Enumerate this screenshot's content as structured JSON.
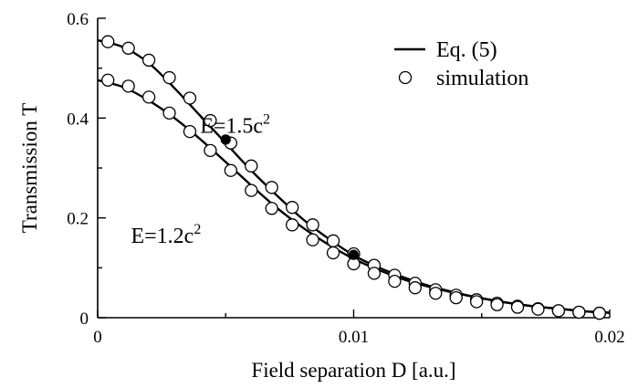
{
  "chart_data": {
    "type": "line",
    "xlabel": "Field separation D [a.u.]",
    "ylabel": "Transmission T",
    "xlim": [
      0,
      0.02
    ],
    "ylim": [
      0,
      0.6
    ],
    "x_ticks": [
      0,
      0.01,
      0.02
    ],
    "x_tick_labels": [
      "0",
      "0.01",
      "0.02"
    ],
    "y_ticks": [
      0,
      0.2,
      0.4,
      0.6
    ],
    "y_tick_labels": [
      "0",
      "0.2",
      "0.4",
      "0.6"
    ],
    "grid": false,
    "legend_position": "top-right",
    "legend": [
      {
        "label": "Eq. (5)",
        "style": "line"
      },
      {
        "label": "simulation",
        "style": "open-circle"
      }
    ],
    "annotations": [
      {
        "text": "E=1.5c",
        "sup": "2",
        "x": 0.004,
        "y": 0.37
      },
      {
        "text": "E=1.2c",
        "sup": "2",
        "x": 0.0013,
        "y": 0.15
      }
    ],
    "series": [
      {
        "name": "E=1.5c2 Eq. (5)",
        "style": "line",
        "x": [
          0,
          0.001,
          0.002,
          0.003,
          0.004,
          0.005,
          0.006,
          0.007,
          0.008,
          0.009,
          0.01,
          0.011,
          0.012,
          0.013,
          0.014,
          0.015,
          0.016,
          0.017,
          0.018,
          0.019,
          0.02
        ],
        "y": [
          0.556,
          0.542,
          0.51,
          0.46,
          0.405,
          0.35,
          0.295,
          0.245,
          0.198,
          0.159,
          0.125,
          0.1,
          0.08,
          0.063,
          0.05,
          0.039,
          0.03,
          0.023,
          0.018,
          0.013,
          0.01
        ]
      },
      {
        "name": "E=1.2c2 Eq. (5)",
        "style": "line",
        "x": [
          0,
          0.001,
          0.002,
          0.003,
          0.004,
          0.005,
          0.006,
          0.007,
          0.008,
          0.009,
          0.01,
          0.011,
          0.012,
          0.013,
          0.014,
          0.015,
          0.016,
          0.017,
          0.018,
          0.019,
          0.02
        ],
        "y": [
          0.476,
          0.462,
          0.435,
          0.4,
          0.358,
          0.312,
          0.265,
          0.22,
          0.181,
          0.147,
          0.118,
          0.095,
          0.076,
          0.061,
          0.049,
          0.039,
          0.03,
          0.023,
          0.018,
          0.013,
          0.01
        ]
      },
      {
        "name": "E=1.5c2 simulation",
        "style": "open-circle",
        "x": [
          0.0004,
          0.0012,
          0.002,
          0.0028,
          0.0036,
          0.0044,
          0.0052,
          0.006,
          0.0068,
          0.0076,
          0.0084,
          0.0092,
          0.01,
          0.0108,
          0.0116,
          0.0124,
          0.0132,
          0.014,
          0.0148,
          0.0156,
          0.0164,
          0.0172,
          0.018,
          0.0188,
          0.0196
        ],
        "y": [
          0.553,
          0.54,
          0.516,
          0.481,
          0.44,
          0.395,
          0.35,
          0.304,
          0.261,
          0.221,
          0.186,
          0.154,
          0.128,
          0.105,
          0.085,
          0.069,
          0.056,
          0.045,
          0.036,
          0.029,
          0.023,
          0.018,
          0.014,
          0.011,
          0.009
        ]
      },
      {
        "name": "E=1.2c2 simulation",
        "style": "open-circle",
        "x": [
          0.0004,
          0.0012,
          0.002,
          0.0028,
          0.0036,
          0.0044,
          0.0052,
          0.006,
          0.0068,
          0.0076,
          0.0084,
          0.0092,
          0.01,
          0.0108,
          0.0116,
          0.0124,
          0.0132,
          0.014,
          0.0148,
          0.0156,
          0.0164,
          0.0172,
          0.018,
          0.0188,
          0.0196
        ],
        "y": [
          0.476,
          0.464,
          0.442,
          0.41,
          0.373,
          0.335,
          0.295,
          0.255,
          0.219,
          0.186,
          0.156,
          0.13,
          0.108,
          0.089,
          0.073,
          0.06,
          0.049,
          0.04,
          0.032,
          0.026,
          0.021,
          0.017,
          0.014,
          0.011,
          0.009
        ]
      },
      {
        "name": "highlighted points",
        "style": "filled-circle",
        "x": [
          0.005,
          0.01
        ],
        "y": [
          0.357,
          0.126
        ]
      }
    ]
  }
}
